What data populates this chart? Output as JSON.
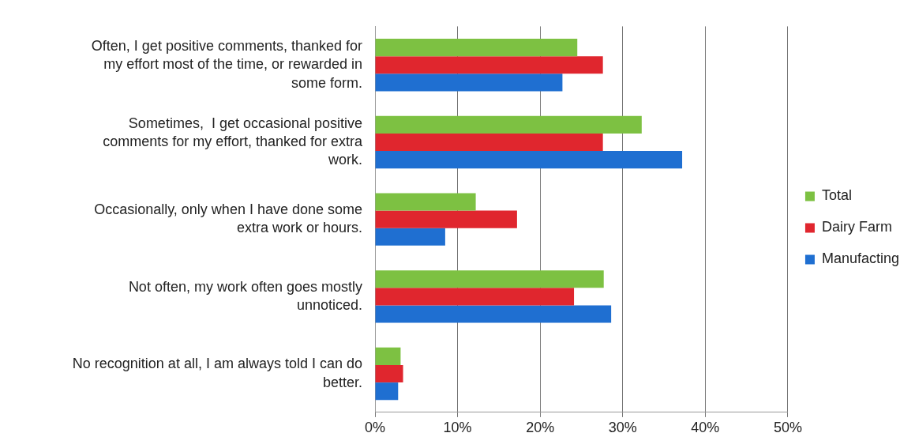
{
  "chart_data": {
    "type": "bar",
    "orientation": "horizontal",
    "categories": [
      "Often, I get positive comments, thanked for my effort most of the time, or rewarded in some form.",
      "Sometimes,  I get occasional positive comments for my effort, thanked for extra work.",
      "Occasionally, only when I have done some extra work or hours.",
      "Not often, my work often goes mostly unnoticed.",
      "No recognition at all, I am always told I can do better."
    ],
    "series": [
      {
        "name": "Total",
        "color": "#7dc142",
        "values": [
          24.5,
          32.3,
          12.2,
          27.7,
          3.1
        ]
      },
      {
        "name": "Dairy Farm",
        "color": "#e0262e",
        "values": [
          27.6,
          27.6,
          17.2,
          24.1,
          3.4
        ]
      },
      {
        "name": "Manufacting",
        "color": "#1f6fd1",
        "values": [
          22.7,
          37.2,
          8.5,
          28.6,
          2.8
        ]
      }
    ],
    "xlim": [
      0,
      50
    ],
    "xticks": [
      {
        "value": 0,
        "label": "0%"
      },
      {
        "value": 10,
        "label": "10%"
      },
      {
        "value": 20,
        "label": "20%"
      },
      {
        "value": 30,
        "label": "30%"
      },
      {
        "value": 40,
        "label": "40%"
      },
      {
        "value": 50,
        "label": "50%"
      }
    ],
    "grid": "x",
    "legend": "right"
  }
}
